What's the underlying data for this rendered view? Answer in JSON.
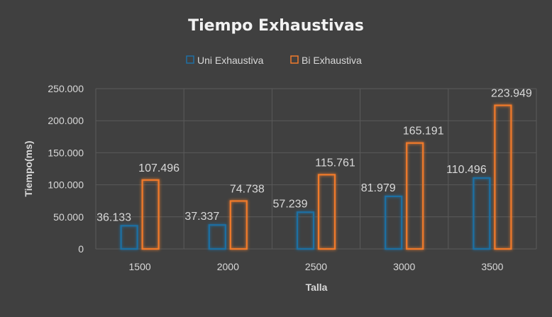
{
  "chart_data": {
    "type": "bar",
    "title": "Tiempo Exhaustivas",
    "xlabel": "Talla",
    "ylabel": "Tiempo(ms)",
    "categories": [
      "1500",
      "2000",
      "2500",
      "3000",
      "3500"
    ],
    "ylim": [
      0,
      250000
    ],
    "yticks": [
      0,
      50000,
      100000,
      150000,
      200000,
      250000
    ],
    "ytick_labels": [
      "0",
      "50.000",
      "100.000",
      "150.000",
      "200.000",
      "250.000"
    ],
    "grid": true,
    "legend_position": "top",
    "series": [
      {
        "name": "Uni Exhaustiva",
        "color": "#1f6fa3",
        "values": [
          36133,
          37337,
          57239,
          81979,
          110496
        ],
        "labels": [
          "36.133",
          "37.337",
          "57.239",
          "81.979",
          "110.496"
        ]
      },
      {
        "name": "Bi Exhaustiva",
        "color": "#f07a2c",
        "values": [
          107496,
          74738,
          115761,
          165191,
          223949
        ],
        "labels": [
          "107.496",
          "74.738",
          "115.761",
          "165.191",
          "223.949"
        ]
      }
    ]
  },
  "colors": {
    "background": "#404040",
    "grid": "#5a5a5a",
    "text": "#d9d9d9",
    "title": "#f2f2f2"
  }
}
